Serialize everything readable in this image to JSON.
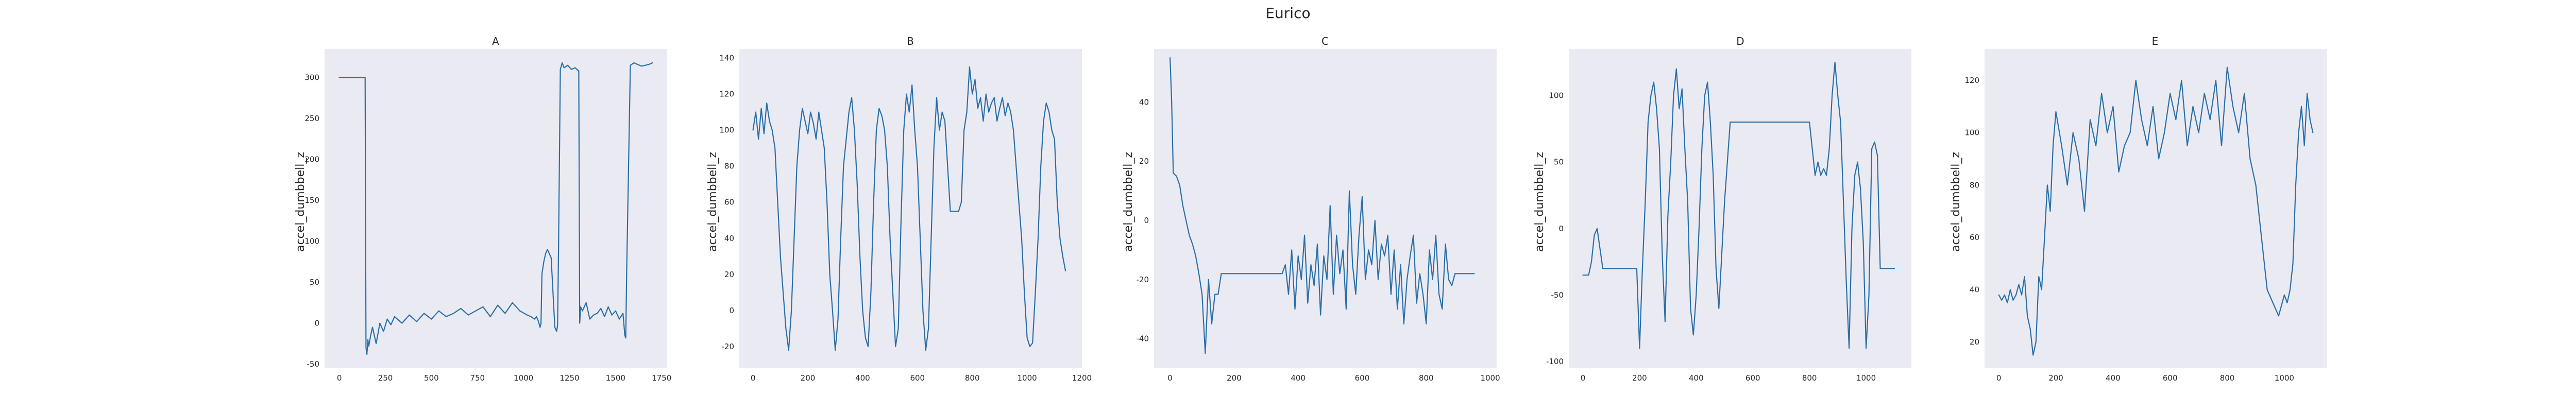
{
  "figure": {
    "title": "Eurico",
    "line_color": "#2a6fa8",
    "background_color": "#eaeaf2"
  },
  "chart_data": [
    {
      "type": "line",
      "title": "A",
      "xlabel": "",
      "ylabel": "accel_dumbbell_z",
      "xlim": [
        -80,
        1780
      ],
      "ylim": [
        -55,
        335
      ],
      "xticks": [
        0,
        250,
        500,
        750,
        1000,
        1250,
        1500,
        1750
      ],
      "yticks": [
        -50,
        0,
        50,
        100,
        150,
        200,
        250,
        300
      ],
      "grid": false,
      "x": [
        0,
        40,
        80,
        120,
        136,
        140,
        145,
        150,
        155,
        160,
        170,
        180,
        200,
        220,
        240,
        260,
        280,
        300,
        340,
        380,
        420,
        460,
        500,
        540,
        580,
        620,
        660,
        700,
        740,
        780,
        820,
        860,
        900,
        940,
        980,
        1020,
        1040,
        1060,
        1070,
        1080,
        1090,
        1095,
        1100,
        1110,
        1120,
        1130,
        1150,
        1170,
        1180,
        1185,
        1190,
        1200,
        1210,
        1220,
        1240,
        1260,
        1280,
        1300,
        1305,
        1310,
        1320,
        1340,
        1360,
        1380,
        1400,
        1420,
        1440,
        1460,
        1480,
        1500,
        1520,
        1540,
        1550,
        1555,
        1560,
        1580,
        1600,
        1620,
        1640,
        1660,
        1680,
        1700
      ],
      "y": [
        300,
        300,
        300,
        300,
        300,
        300,
        -30,
        -38,
        -20,
        -28,
        -15,
        -5,
        -25,
        0,
        -10,
        5,
        -2,
        8,
        0,
        10,
        2,
        12,
        5,
        15,
        8,
        12,
        18,
        10,
        15,
        20,
        8,
        22,
        12,
        25,
        15,
        10,
        8,
        5,
        8,
        3,
        -5,
        0,
        60,
        75,
        85,
        90,
        80,
        -5,
        -10,
        -2,
        90,
        310,
        318,
        312,
        315,
        310,
        312,
        308,
        0,
        20,
        15,
        25,
        5,
        10,
        12,
        18,
        8,
        20,
        10,
        15,
        5,
        12,
        -15,
        -18,
        60,
        315,
        318,
        316,
        314,
        315,
        316,
        318
      ]
    },
    {
      "type": "line",
      "title": "B",
      "xlabel": "",
      "ylabel": "accel_dumbbell_z",
      "xlim": [
        -50,
        1200
      ],
      "ylim": [
        -32,
        145
      ],
      "xticks": [
        0,
        200,
        400,
        600,
        800,
        1000,
        1200
      ],
      "yticks": [
        -20,
        0,
        20,
        40,
        60,
        80,
        100,
        120,
        140
      ],
      "grid": false,
      "x": [
        0,
        10,
        20,
        30,
        40,
        50,
        60,
        70,
        80,
        90,
        100,
        110,
        120,
        130,
        140,
        150,
        160,
        170,
        180,
        190,
        200,
        210,
        220,
        230,
        240,
        250,
        260,
        270,
        280,
        290,
        300,
        310,
        320,
        330,
        340,
        350,
        360,
        370,
        380,
        390,
        400,
        410,
        420,
        430,
        440,
        450,
        460,
        470,
        480,
        490,
        500,
        510,
        520,
        530,
        540,
        550,
        560,
        570,
        580,
        590,
        600,
        610,
        620,
        630,
        640,
        650,
        660,
        670,
        680,
        690,
        700,
        710,
        720,
        730,
        740,
        750,
        760,
        770,
        780,
        790,
        800,
        810,
        820,
        830,
        840,
        850,
        860,
        870,
        880,
        890,
        900,
        910,
        920,
        930,
        940,
        950,
        960,
        970,
        980,
        990,
        1000,
        1010,
        1020,
        1030,
        1040,
        1050,
        1060,
        1070,
        1080,
        1090,
        1100,
        1110,
        1120,
        1130,
        1140
      ],
      "y": [
        100,
        110,
        95,
        112,
        98,
        115,
        105,
        100,
        90,
        60,
        30,
        10,
        -10,
        -22,
        0,
        40,
        80,
        100,
        112,
        105,
        98,
        110,
        104,
        95,
        110,
        100,
        90,
        60,
        20,
        0,
        -22,
        -5,
        40,
        80,
        95,
        110,
        118,
        100,
        70,
        30,
        0,
        -15,
        -20,
        10,
        60,
        100,
        112,
        108,
        100,
        80,
        40,
        10,
        -20,
        -10,
        50,
        100,
        120,
        110,
        125,
        100,
        80,
        40,
        0,
        -22,
        -10,
        40,
        90,
        118,
        100,
        110,
        105,
        80,
        55,
        55,
        55,
        55,
        60,
        100,
        110,
        135,
        120,
        128,
        112,
        118,
        105,
        120,
        110,
        115,
        118,
        105,
        112,
        118,
        108,
        115,
        110,
        100,
        80,
        60,
        40,
        10,
        -15,
        -20,
        -18,
        10,
        40,
        80,
        105,
        115,
        110,
        100,
        95,
        60,
        40,
        30,
        22
      ]
    },
    {
      "type": "line",
      "title": "C",
      "xlabel": "",
      "ylabel": "accel_dumbbell_z",
      "xlim": [
        -50,
        1020
      ],
      "ylim": [
        -50,
        58
      ],
      "xticks": [
        0,
        200,
        400,
        600,
        800,
        1000
      ],
      "yticks": [
        -40,
        -20,
        0,
        20,
        40
      ],
      "grid": false,
      "x": [
        0,
        5,
        10,
        20,
        30,
        40,
        50,
        60,
        70,
        80,
        90,
        100,
        110,
        120,
        130,
        140,
        150,
        160,
        170,
        180,
        190,
        200,
        300,
        350,
        360,
        370,
        380,
        390,
        400,
        410,
        420,
        430,
        440,
        450,
        460,
        470,
        480,
        490,
        500,
        510,
        520,
        530,
        540,
        550,
        560,
        570,
        580,
        590,
        600,
        610,
        620,
        630,
        640,
        650,
        660,
        670,
        680,
        690,
        700,
        710,
        720,
        730,
        740,
        750,
        760,
        770,
        780,
        790,
        800,
        810,
        820,
        830,
        840,
        850,
        860,
        870,
        880,
        890,
        900,
        950
      ],
      "y": [
        55,
        40,
        16,
        15,
        12,
        5,
        0,
        -5,
        -8,
        -12,
        -18,
        -25,
        -45,
        -20,
        -35,
        -25,
        -25,
        -18,
        -18,
        -18,
        -18,
        -18,
        -18,
        -18,
        -15,
        -25,
        -10,
        -30,
        -12,
        -20,
        -5,
        -28,
        -15,
        -22,
        -8,
        -32,
        -12,
        -20,
        5,
        -25,
        -5,
        -18,
        -10,
        -30,
        10,
        -15,
        -25,
        -5,
        8,
        -20,
        -10,
        -15,
        0,
        -20,
        -8,
        -12,
        -5,
        -25,
        -10,
        -30,
        -15,
        -35,
        -20,
        -12,
        -5,
        -28,
        -18,
        -25,
        -35,
        -10,
        -20,
        -5,
        -25,
        -30,
        -8,
        -20,
        -22,
        -18,
        -18,
        -18
      ]
    },
    {
      "type": "line",
      "title": "D",
      "xlabel": "",
      "ylabel": "accel_dumbbell_z",
      "xlim": [
        -50,
        1160
      ],
      "ylim": [
        -105,
        135
      ],
      "xticks": [
        0,
        200,
        400,
        600,
        800,
        1000
      ],
      "yticks": [
        -100,
        -50,
        0,
        50,
        100
      ],
      "grid": false,
      "x": [
        0,
        20,
        30,
        40,
        50,
        60,
        70,
        80,
        100,
        150,
        190,
        200,
        205,
        210,
        220,
        230,
        240,
        250,
        260,
        270,
        280,
        290,
        300,
        310,
        320,
        330,
        340,
        350,
        360,
        370,
        380,
        390,
        400,
        410,
        420,
        430,
        440,
        450,
        460,
        470,
        480,
        490,
        500,
        510,
        520,
        530,
        540,
        550,
        560,
        600,
        700,
        800,
        820,
        830,
        840,
        850,
        860,
        870,
        880,
        890,
        900,
        910,
        920,
        930,
        940,
        950,
        960,
        970,
        980,
        990,
        1000,
        1010,
        1020,
        1030,
        1040,
        1050,
        1060,
        1100
      ],
      "y": [
        -35,
        -35,
        -25,
        -5,
        0,
        -15,
        -30,
        -30,
        -30,
        -30,
        -30,
        -90,
        -60,
        -30,
        20,
        80,
        100,
        110,
        90,
        60,
        -20,
        -70,
        10,
        50,
        100,
        120,
        90,
        105,
        60,
        20,
        -60,
        -80,
        -50,
        0,
        60,
        100,
        110,
        80,
        40,
        -30,
        -60,
        -20,
        20,
        50,
        80,
        80,
        80,
        80,
        80,
        80,
        80,
        80,
        40,
        50,
        40,
        45,
        40,
        60,
        100,
        125,
        100,
        80,
        20,
        -40,
        -90,
        0,
        40,
        50,
        30,
        -10,
        -90,
        -50,
        60,
        65,
        55,
        -30,
        -30,
        -30
      ]
    },
    {
      "type": "line",
      "title": "E",
      "xlabel": "",
      "ylabel": "accel_dumbbell_z",
      "xlim": [
        -50,
        1150
      ],
      "ylim": [
        10,
        132
      ],
      "xticks": [
        0,
        200,
        400,
        600,
        800,
        1000
      ],
      "yticks": [
        20,
        40,
        60,
        80,
        100,
        120
      ],
      "grid": false,
      "x": [
        0,
        10,
        20,
        30,
        40,
        50,
        60,
        70,
        80,
        90,
        100,
        110,
        120,
        130,
        140,
        150,
        160,
        170,
        180,
        190,
        200,
        220,
        240,
        260,
        280,
        300,
        320,
        340,
        360,
        380,
        400,
        420,
        440,
        460,
        480,
        500,
        520,
        540,
        560,
        580,
        600,
        620,
        640,
        660,
        680,
        700,
        720,
        740,
        760,
        780,
        800,
        820,
        840,
        860,
        880,
        900,
        920,
        940,
        960,
        980,
        1000,
        1010,
        1020,
        1030,
        1040,
        1050,
        1060,
        1070,
        1080,
        1090,
        1100
      ],
      "y": [
        38,
        36,
        38,
        35,
        40,
        36,
        38,
        42,
        38,
        45,
        30,
        25,
        15,
        20,
        45,
        40,
        60,
        80,
        70,
        95,
        108,
        95,
        80,
        100,
        90,
        70,
        105,
        95,
        115,
        100,
        110,
        85,
        95,
        100,
        120,
        105,
        95,
        110,
        90,
        100,
        115,
        105,
        120,
        95,
        110,
        100,
        115,
        105,
        120,
        95,
        125,
        110,
        100,
        115,
        90,
        80,
        60,
        40,
        35,
        30,
        38,
        35,
        40,
        50,
        80,
        100,
        110,
        95,
        115,
        105,
        100
      ]
    }
  ]
}
